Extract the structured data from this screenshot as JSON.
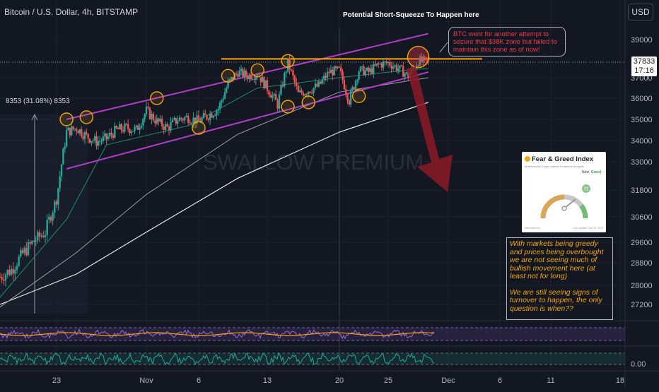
{
  "header": {
    "symbol_title": "Bitcoin / U.S. Dollar, 4h, BITSTAMP",
    "currency_button": "USD"
  },
  "price_tag": {
    "price": "37833",
    "countdown": "17:16"
  },
  "annotations": {
    "top_note": "Potential Short-Squeeze To Happen here",
    "callout": "BTC went for another attempt to secure that $38K zone but failed to maintain this zone as of now!",
    "range_label": "8353 (31.08%) 8353",
    "watermark": "SWALLOW PREMIUM",
    "comment_1": "With markets being greedy and prices being overbought we are not seeing much of bullish movement here (at least not for long)",
    "comment_2": "We are still seeing signs of turnover to happen, the only question is when??"
  },
  "fear_greed": {
    "title": "Fear & Greed Index",
    "subtitle": "Multifactorial Crypto Market Sentiment Analysis",
    "now_label": "Now:",
    "now_value": "Greed",
    "value": "72",
    "source": "alternative.me",
    "updated": "Last updated: Nov 29, 2023"
  },
  "colors": {
    "background": "#131722",
    "up_candle": "#26a69a",
    "down_candle": "#ef5350",
    "channel": "#b03cc8",
    "resistance": "#f7a600",
    "arrow": "#8b1a24"
  },
  "chart_data": {
    "type": "candlestick",
    "symbol": "Bitcoin / U.S. Dollar",
    "interval": "4h",
    "exchange": "BITSTAMP",
    "last_price": 37833,
    "y_ticks": [
      "39000",
      "37000",
      "36000",
      "35000",
      "34000",
      "33000",
      "31800",
      "30600",
      "29600",
      "28800",
      "28000",
      "27200"
    ],
    "x_ticks": [
      "23",
      "Nov",
      "6",
      "13",
      "20",
      "25",
      "Dec",
      "6",
      "11",
      "18"
    ],
    "x_range": [
      "2023-10-18",
      "2023-12-19"
    ],
    "y_range": [
      26700,
      40000
    ],
    "resistance_level": 38000,
    "range_measure": {
      "value": 8353,
      "percent": 31.08
    },
    "close_path": [
      [
        "2023-10-18",
        28300
      ],
      [
        "2023-10-19",
        28550
      ],
      [
        "2023-10-20",
        29150
      ],
      [
        "2023-10-21",
        29650
      ],
      [
        "2023-10-22",
        30000
      ],
      [
        "2023-10-23",
        31400
      ],
      [
        "2023-10-24",
        34400
      ],
      [
        "2023-10-25",
        34600
      ],
      [
        "2023-10-26",
        34200
      ],
      [
        "2023-10-27",
        33950
      ],
      [
        "2023-10-28",
        34100
      ],
      [
        "2023-10-29",
        34500
      ],
      [
        "2023-10-30",
        34600
      ],
      [
        "2023-10-31",
        34500
      ],
      [
        "2023-11-01",
        35400
      ],
      [
        "2023-11-02",
        34900
      ],
      [
        "2023-11-03",
        34600
      ],
      [
        "2023-11-04",
        35000
      ],
      [
        "2023-11-05",
        35100
      ],
      [
        "2023-11-06",
        34900
      ],
      [
        "2023-11-07",
        35200
      ],
      [
        "2023-11-08",
        35500
      ],
      [
        "2023-11-09",
        36700
      ],
      [
        "2023-11-10",
        37300
      ],
      [
        "2023-11-11",
        37100
      ],
      [
        "2023-11-12",
        37200
      ],
      [
        "2023-11-13",
        36500
      ],
      [
        "2023-11-14",
        35700
      ],
      [
        "2023-11-15",
        37800
      ],
      [
        "2023-11-16",
        36200
      ],
      [
        "2023-11-17",
        36400
      ],
      [
        "2023-11-18",
        36600
      ],
      [
        "2023-11-19",
        37300
      ],
      [
        "2023-11-20",
        37400
      ],
      [
        "2023-11-21",
        35900
      ],
      [
        "2023-11-22",
        37400
      ],
      [
        "2023-11-23",
        37300
      ],
      [
        "2023-11-24",
        37700
      ],
      [
        "2023-11-25",
        37800
      ],
      [
        "2023-11-26",
        37500
      ],
      [
        "2023-11-27",
        37100
      ],
      [
        "2023-11-28",
        37900
      ],
      [
        "2023-11-29",
        37833
      ]
    ],
    "ema_fast": [
      [
        "2023-10-18",
        27500
      ],
      [
        "2023-10-24",
        30500
      ],
      [
        "2023-10-28",
        33800
      ],
      [
        "2023-11-05",
        34700
      ],
      [
        "2023-11-12",
        36500
      ],
      [
        "2023-11-20",
        37000
      ],
      [
        "2023-11-25",
        37300
      ],
      [
        "2023-11-29",
        37500
      ]
    ],
    "ma_mid": [
      [
        "2023-10-18",
        27100
      ],
      [
        "2023-10-25",
        29200
      ],
      [
        "2023-11-01",
        31600
      ],
      [
        "2023-11-10",
        34300
      ],
      [
        "2023-11-20",
        36300
      ],
      [
        "2023-11-29",
        37000
      ]
    ],
    "ma_slow": [
      [
        "2023-10-18",
        27200
      ],
      [
        "2023-10-25",
        28400
      ],
      [
        "2023-11-01",
        30000
      ],
      [
        "2023-11-10",
        32300
      ],
      [
        "2023-11-20",
        34400
      ],
      [
        "2023-11-29",
        35800
      ]
    ],
    "channel_upper": [
      [
        "2023-10-24",
        35000
      ],
      [
        "2023-11-29",
        39300
      ]
    ],
    "channel_lower": [
      [
        "2023-10-24",
        32700
      ],
      [
        "2023-11-29",
        37300
      ]
    ],
    "touch_points": [
      [
        "2023-10-24",
        35000
      ],
      [
        "2023-10-26",
        35100
      ],
      [
        "2023-11-02",
        36000
      ],
      [
        "2023-11-06",
        34600
      ],
      [
        "2023-11-09",
        37100
      ],
      [
        "2023-11-12",
        37400
      ],
      [
        "2023-11-15",
        37900
      ],
      [
        "2023-11-15",
        35600
      ],
      [
        "2023-11-17",
        35800
      ],
      [
        "2023-11-22",
        36100
      ],
      [
        "2023-11-28",
        38100
      ]
    ],
    "oscillator_value_label": "0.00"
  }
}
